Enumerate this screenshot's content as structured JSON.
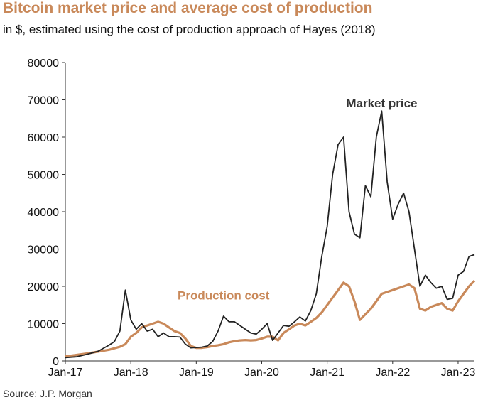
{
  "chart_data": {
    "type": "line",
    "title": "Bitcoin market price and average cost of production",
    "subtitle": "in $, estimated using the cost of production approach of Hayes (2018)",
    "xlabel": "",
    "ylabel": "",
    "ylim": [
      0,
      80000
    ],
    "yticks": [
      "0",
      "10000",
      "20000",
      "30000",
      "40000",
      "50000",
      "60000",
      "70000",
      "80000"
    ],
    "xtick_labels": [
      "Jan-17",
      "Jan-18",
      "Jan-19",
      "Jan-20",
      "Jan-21",
      "Jan-22",
      "Jan-23"
    ],
    "xtick_dates": [
      "2017-01",
      "2018-01",
      "2019-01",
      "2020-01",
      "2021-01",
      "2022-01",
      "2023-01"
    ],
    "xlim": [
      "2017-01",
      "2023-04"
    ],
    "grid": false,
    "legend": "inline labels",
    "fill_between": true,
    "series": [
      {
        "name": "Market price",
        "color": "#222222",
        "points": [
          [
            "2017-01",
            900
          ],
          [
            "2017-03",
            1100
          ],
          [
            "2017-05",
            1800
          ],
          [
            "2017-07",
            2600
          ],
          [
            "2017-09",
            4200
          ],
          [
            "2017-10",
            5200
          ],
          [
            "2017-11",
            8000
          ],
          [
            "2017-12",
            19000
          ],
          [
            "2018-01",
            11000
          ],
          [
            "2018-02",
            8500
          ],
          [
            "2018-03",
            10000
          ],
          [
            "2018-04",
            8000
          ],
          [
            "2018-05",
            8500
          ],
          [
            "2018-06",
            6500
          ],
          [
            "2018-07",
            7500
          ],
          [
            "2018-08",
            6500
          ],
          [
            "2018-09",
            6500
          ],
          [
            "2018-10",
            6400
          ],
          [
            "2018-11",
            4500
          ],
          [
            "2018-12",
            3500
          ],
          [
            "2019-01",
            3600
          ],
          [
            "2019-02",
            3700
          ],
          [
            "2019-03",
            4000
          ],
          [
            "2019-04",
            5200
          ],
          [
            "2019-05",
            8000
          ],
          [
            "2019-06",
            12000
          ],
          [
            "2019-07",
            10500
          ],
          [
            "2019-08",
            10500
          ],
          [
            "2019-09",
            9500
          ],
          [
            "2019-10",
            8500
          ],
          [
            "2019-11",
            7500
          ],
          [
            "2019-12",
            7200
          ],
          [
            "2020-01",
            8500
          ],
          [
            "2020-02",
            10000
          ],
          [
            "2020-03",
            5500
          ],
          [
            "2020-04",
            7500
          ],
          [
            "2020-05",
            9500
          ],
          [
            "2020-06",
            9300
          ],
          [
            "2020-07",
            10500
          ],
          [
            "2020-08",
            11800
          ],
          [
            "2020-09",
            10700
          ],
          [
            "2020-10",
            13500
          ],
          [
            "2020-11",
            18000
          ],
          [
            "2020-12",
            28000
          ],
          [
            "2021-01",
            36000
          ],
          [
            "2021-02",
            50000
          ],
          [
            "2021-03",
            58000
          ],
          [
            "2021-04",
            60000
          ],
          [
            "2021-05",
            40000
          ],
          [
            "2021-06",
            34000
          ],
          [
            "2021-07",
            33000
          ],
          [
            "2021-08",
            47000
          ],
          [
            "2021-09",
            44000
          ],
          [
            "2021-10",
            60000
          ],
          [
            "2021-11",
            67000
          ],
          [
            "2021-12",
            48000
          ],
          [
            "2022-01",
            38000
          ],
          [
            "2022-02",
            42000
          ],
          [
            "2022-03",
            45000
          ],
          [
            "2022-04",
            40000
          ],
          [
            "2022-05",
            30000
          ],
          [
            "2022-06",
            20000
          ],
          [
            "2022-07",
            23000
          ],
          [
            "2022-08",
            21000
          ],
          [
            "2022-09",
            19500
          ],
          [
            "2022-10",
            20000
          ],
          [
            "2022-11",
            16500
          ],
          [
            "2022-12",
            16800
          ],
          [
            "2023-01",
            23000
          ],
          [
            "2023-02",
            24000
          ],
          [
            "2023-03",
            28000
          ],
          [
            "2023-04",
            28500
          ]
        ]
      },
      {
        "name": "Production cost",
        "color": "#c9895a",
        "points": [
          [
            "2017-01",
            1200
          ],
          [
            "2017-03",
            1600
          ],
          [
            "2017-05",
            2000
          ],
          [
            "2017-07",
            2500
          ],
          [
            "2017-09",
            3000
          ],
          [
            "2017-11",
            3800
          ],
          [
            "2017-12",
            4500
          ],
          [
            "2018-01",
            6500
          ],
          [
            "2018-02",
            7500
          ],
          [
            "2018-03",
            9000
          ],
          [
            "2018-04",
            9500
          ],
          [
            "2018-05",
            10000
          ],
          [
            "2018-06",
            10500
          ],
          [
            "2018-07",
            10000
          ],
          [
            "2018-08",
            9000
          ],
          [
            "2018-09",
            8000
          ],
          [
            "2018-10",
            7500
          ],
          [
            "2018-11",
            6000
          ],
          [
            "2018-12",
            4000
          ],
          [
            "2019-01",
            3500
          ],
          [
            "2019-02",
            3500
          ],
          [
            "2019-03",
            3700
          ],
          [
            "2019-04",
            4000
          ],
          [
            "2019-05",
            4200
          ],
          [
            "2019-06",
            4500
          ],
          [
            "2019-07",
            5000
          ],
          [
            "2019-08",
            5300
          ],
          [
            "2019-09",
            5500
          ],
          [
            "2019-10",
            5600
          ],
          [
            "2019-11",
            5500
          ],
          [
            "2019-12",
            5600
          ],
          [
            "2020-01",
            6000
          ],
          [
            "2020-02",
            6500
          ],
          [
            "2020-03",
            6500
          ],
          [
            "2020-04",
            5500
          ],
          [
            "2020-05",
            7500
          ],
          [
            "2020-06",
            8500
          ],
          [
            "2020-07",
            9500
          ],
          [
            "2020-08",
            10000
          ],
          [
            "2020-09",
            9500
          ],
          [
            "2020-10",
            10500
          ],
          [
            "2020-11",
            11500
          ],
          [
            "2020-12",
            13000
          ],
          [
            "2021-01",
            15000
          ],
          [
            "2021-02",
            17000
          ],
          [
            "2021-03",
            19000
          ],
          [
            "2021-04",
            21000
          ],
          [
            "2021-05",
            20000
          ],
          [
            "2021-06",
            16000
          ],
          [
            "2021-07",
            11000
          ],
          [
            "2021-08",
            12500
          ],
          [
            "2021-09",
            14000
          ],
          [
            "2021-10",
            16000
          ],
          [
            "2021-11",
            18000
          ],
          [
            "2021-12",
            18500
          ],
          [
            "2022-01",
            19000
          ],
          [
            "2022-02",
            19500
          ],
          [
            "2022-03",
            20000
          ],
          [
            "2022-04",
            20500
          ],
          [
            "2022-05",
            19500
          ],
          [
            "2022-06",
            14000
          ],
          [
            "2022-07",
            13500
          ],
          [
            "2022-08",
            14500
          ],
          [
            "2022-09",
            15000
          ],
          [
            "2022-10",
            15500
          ],
          [
            "2022-11",
            14000
          ],
          [
            "2022-12",
            13500
          ],
          [
            "2023-01",
            16000
          ],
          [
            "2023-02",
            18000
          ],
          [
            "2023-03",
            20000
          ],
          [
            "2023-04",
            21500
          ]
        ]
      }
    ],
    "annotations": [
      {
        "text": "Market price",
        "color": "#333333",
        "at": [
          "2021-11",
          68000
        ]
      },
      {
        "text": "Production cost",
        "color": "#c9895a",
        "at": [
          "2019-06",
          16500
        ]
      }
    ],
    "source": "Source: J.P. Morgan"
  }
}
